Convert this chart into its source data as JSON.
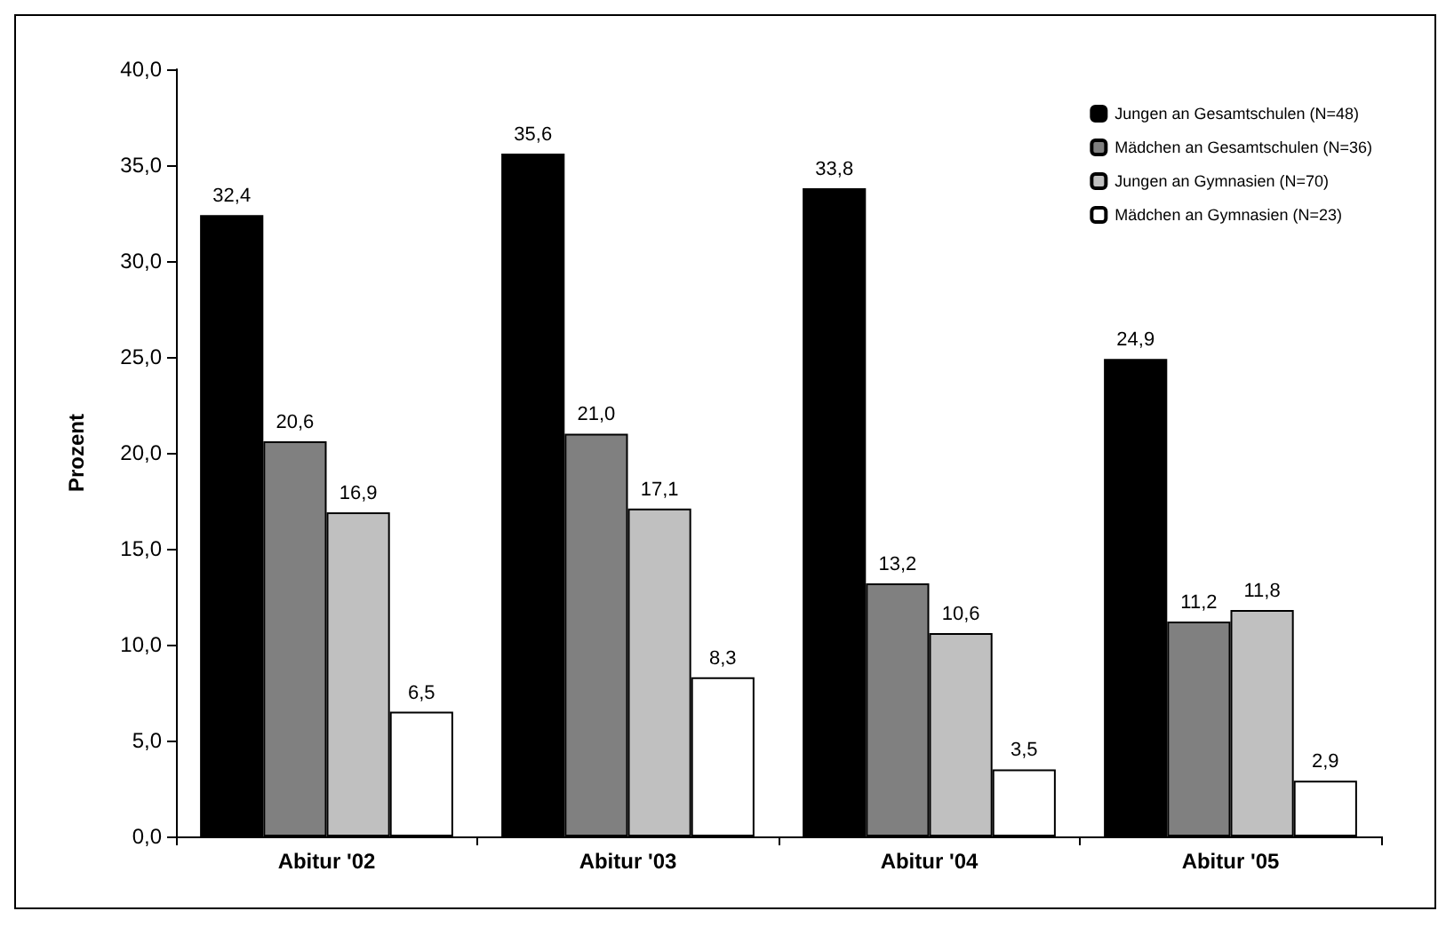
{
  "chart_data": {
    "type": "bar",
    "ylabel": "Prozent",
    "categories": [
      "Abitur '02",
      "Abitur '03",
      "Abitur '04",
      "Abitur '05"
    ],
    "series": [
      {
        "name": "Jungen an Gesamtschulen (N=48)",
        "color": "#000000",
        "values": [
          32.4,
          35.6,
          33.8,
          24.9
        ],
        "value_labels": [
          "32,4",
          "35,6",
          "33,8",
          "24,9"
        ]
      },
      {
        "name": "Mädchen an Gesamtschulen (N=36)",
        "color": "#808080",
        "values": [
          20.6,
          21.0,
          13.2,
          11.2
        ],
        "value_labels": [
          "20,6",
          "21,0",
          "13,2",
          "11,2"
        ]
      },
      {
        "name": "Jungen an Gymnasien (N=70)",
        "color": "#c0c0c0",
        "values": [
          16.9,
          17.1,
          10.6,
          11.8
        ],
        "value_labels": [
          "16,9",
          "17,1",
          "10,6",
          "11,8"
        ]
      },
      {
        "name": "Mädchen an Gymnasien (N=23)",
        "color": "#ffffff",
        "values": [
          6.5,
          8.3,
          3.5,
          2.9
        ],
        "value_labels": [
          "6,5",
          "8,3",
          "3,5",
          "2,9"
        ]
      }
    ],
    "ylim": [
      0,
      40
    ],
    "yticks": [
      {
        "value": 0,
        "label": "0,0"
      },
      {
        "value": 5,
        "label": "5,0"
      },
      {
        "value": 10,
        "label": "10,0"
      },
      {
        "value": 15,
        "label": "15,0"
      },
      {
        "value": 20,
        "label": "20,0"
      },
      {
        "value": 25,
        "label": "25,0"
      },
      {
        "value": 30,
        "label": "30,0"
      },
      {
        "value": 35,
        "label": "35,0"
      },
      {
        "value": 40,
        "label": "40,0"
      }
    ],
    "grid": false,
    "legend": "top right"
  }
}
